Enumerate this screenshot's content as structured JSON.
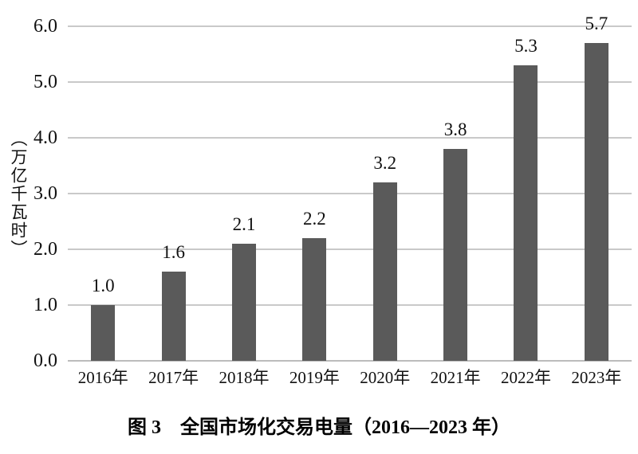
{
  "chart_data": {
    "type": "bar",
    "title": "图 3　全国市场化交易电量（2016—2023 年）",
    "ylabel": "（万亿千瓦时）",
    "xlabel": "",
    "categories": [
      "2016年",
      "2017年",
      "2018年",
      "2019年",
      "2020年",
      "2021年",
      "2022年",
      "2023年"
    ],
    "values": [
      1.0,
      1.6,
      2.1,
      2.2,
      3.2,
      3.8,
      5.3,
      5.7
    ],
    "bar_labels": [
      "1.0",
      "1.6",
      "2.1",
      "2.2",
      "3.2",
      "3.8",
      "5.3",
      "5.7"
    ],
    "ylim": [
      0,
      6
    ],
    "yticks": [
      0.0,
      1.0,
      2.0,
      3.0,
      4.0,
      5.0,
      6.0
    ],
    "ytick_labels": [
      "0.0",
      "1.0",
      "2.0",
      "3.0",
      "4.0",
      "5.0",
      "6.0"
    ],
    "grid": true,
    "legend": "none",
    "colors": {
      "bar": "#5a5a5a",
      "gridline": "#c9c9c9",
      "baseline": "#bcbcbc",
      "text": "#111111",
      "background": "#ffffff"
    }
  }
}
